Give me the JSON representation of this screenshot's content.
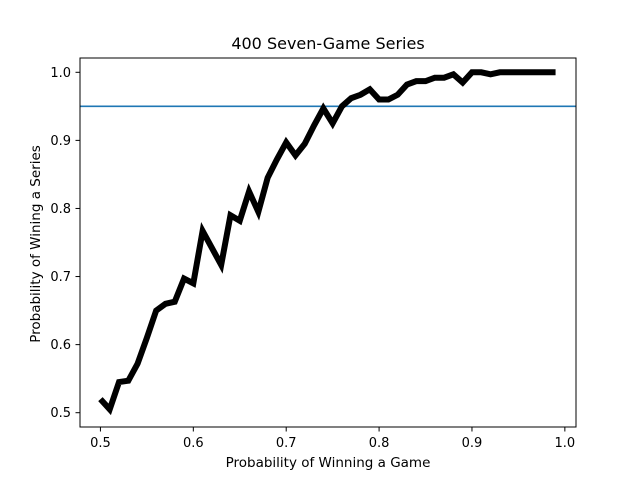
{
  "chart_data": {
    "type": "line",
    "title": "400 Seven-Game Series",
    "xlabel": "Probability of Winning a Game",
    "ylabel": "Probability of Wining a Series",
    "xlim": [
      0.478,
      1.012
    ],
    "ylim": [
      0.479,
      1.021
    ],
    "xticks": [
      0.5,
      0.6,
      0.7,
      0.8,
      0.9,
      1.0
    ],
    "xtick_labels": [
      "0.5",
      "0.6",
      "0.7",
      "0.8",
      "0.9",
      "1.0"
    ],
    "yticks": [
      0.5,
      0.6,
      0.7,
      0.8,
      0.9,
      1.0
    ],
    "ytick_labels": [
      "0.5",
      "0.6",
      "0.7",
      "0.8",
      "0.9",
      "1.0"
    ],
    "grid": false,
    "series": [
      {
        "color": "#000000",
        "x": [
          0.5,
          0.51,
          0.52,
          0.53,
          0.54,
          0.55,
          0.56,
          0.57,
          0.58,
          0.59,
          0.6,
          0.61,
          0.62,
          0.63,
          0.64,
          0.65,
          0.66,
          0.67,
          0.68,
          0.69,
          0.7,
          0.71,
          0.72,
          0.73,
          0.74,
          0.75,
          0.76,
          0.77,
          0.78,
          0.79,
          0.8,
          0.81,
          0.82,
          0.83,
          0.84,
          0.85,
          0.86,
          0.87,
          0.88,
          0.89,
          0.9,
          0.91,
          0.92,
          0.93,
          0.94,
          0.95,
          0.96,
          0.97,
          0.98,
          0.99
        ],
        "y": [
          0.52,
          0.505,
          0.545,
          0.547,
          0.572,
          0.61,
          0.65,
          0.66,
          0.663,
          0.697,
          0.69,
          0.767,
          0.742,
          0.717,
          0.79,
          0.782,
          0.825,
          0.795,
          0.845,
          0.872,
          0.897,
          0.878,
          0.895,
          0.922,
          0.947,
          0.925,
          0.95,
          0.962,
          0.967,
          0.975,
          0.96,
          0.96,
          0.967,
          0.982,
          0.987,
          0.987,
          0.992,
          0.992,
          0.997,
          0.985,
          1.0,
          1.0,
          0.997,
          1.0,
          1.0,
          1.0,
          1.0,
          1.0,
          1.0,
          1.0
        ]
      }
    ],
    "hlines": [
      {
        "y": 0.95,
        "color": "#1f77b4"
      }
    ]
  }
}
